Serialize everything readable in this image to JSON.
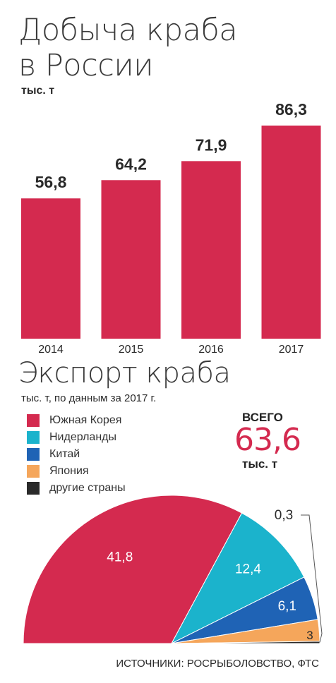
{
  "title_line1": "Добыча краба",
  "title_line2": "в России",
  "unit": "тыс. т",
  "export_title": "Экспорт краба",
  "export_subtitle": "тыс. т, по данным за 2017 г.",
  "total_label": "ВСЕГО",
  "total_value": "63,6",
  "total_unit": "тыс. т",
  "source": "ИСТОЧНИКИ: РОСРЫБОЛОВСТВО, ФТС",
  "chart_data": [
    {
      "type": "bar",
      "categories": [
        "2014",
        "2015",
        "2016",
        "2017"
      ],
      "values": [
        56.8,
        64.2,
        71.9,
        86.3
      ],
      "labels": [
        "56,8",
        "64,2",
        "71,9",
        "86,3"
      ],
      "title": "Добыча краба в России",
      "ylabel": "тыс. т",
      "color": "#d42a4f"
    },
    {
      "type": "pie",
      "categories": [
        "Южная Корея",
        "Нидерланды",
        "Китай",
        "Япония",
        "другие страны"
      ],
      "values": [
        41.8,
        12.4,
        6.1,
        3,
        0.3
      ],
      "labels": [
        "41,8",
        "12,4",
        "6,1",
        "3",
        "0,3"
      ],
      "colors": [
        "#d42a4f",
        "#1bb3cc",
        "#1f63b5",
        "#f5a65b",
        "#2a2a2a"
      ],
      "title": "Экспорт краба"
    }
  ]
}
